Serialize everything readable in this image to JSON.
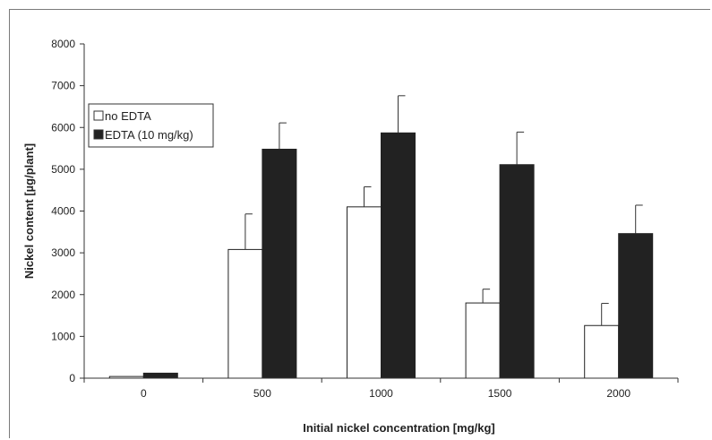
{
  "chart_data": {
    "type": "bar",
    "title": "",
    "xlabel": "Initial nickel concentration [mg/kg]",
    "ylabel": "Nickel content [µg/plant]",
    "categories": [
      "0",
      "500",
      "1000",
      "1500",
      "2000"
    ],
    "ylim": [
      0,
      8000
    ],
    "yticks": [
      "0",
      "1000",
      "2000",
      "3000",
      "4000",
      "5000",
      "6000",
      "7000",
      "8000"
    ],
    "grid": false,
    "legend_position": "top-left",
    "series": [
      {
        "name": "no EDTA",
        "color": "#ffffff",
        "values": [
          40,
          3080,
          4100,
          1800,
          1260
        ],
        "errors": [
          0,
          850,
          480,
          330,
          530
        ]
      },
      {
        "name": "EDTA (10 mg/kg)",
        "color": "#222222",
        "values": [
          120,
          5480,
          5870,
          5110,
          3460
        ],
        "errors": [
          0,
          630,
          890,
          780,
          680
        ]
      }
    ]
  }
}
